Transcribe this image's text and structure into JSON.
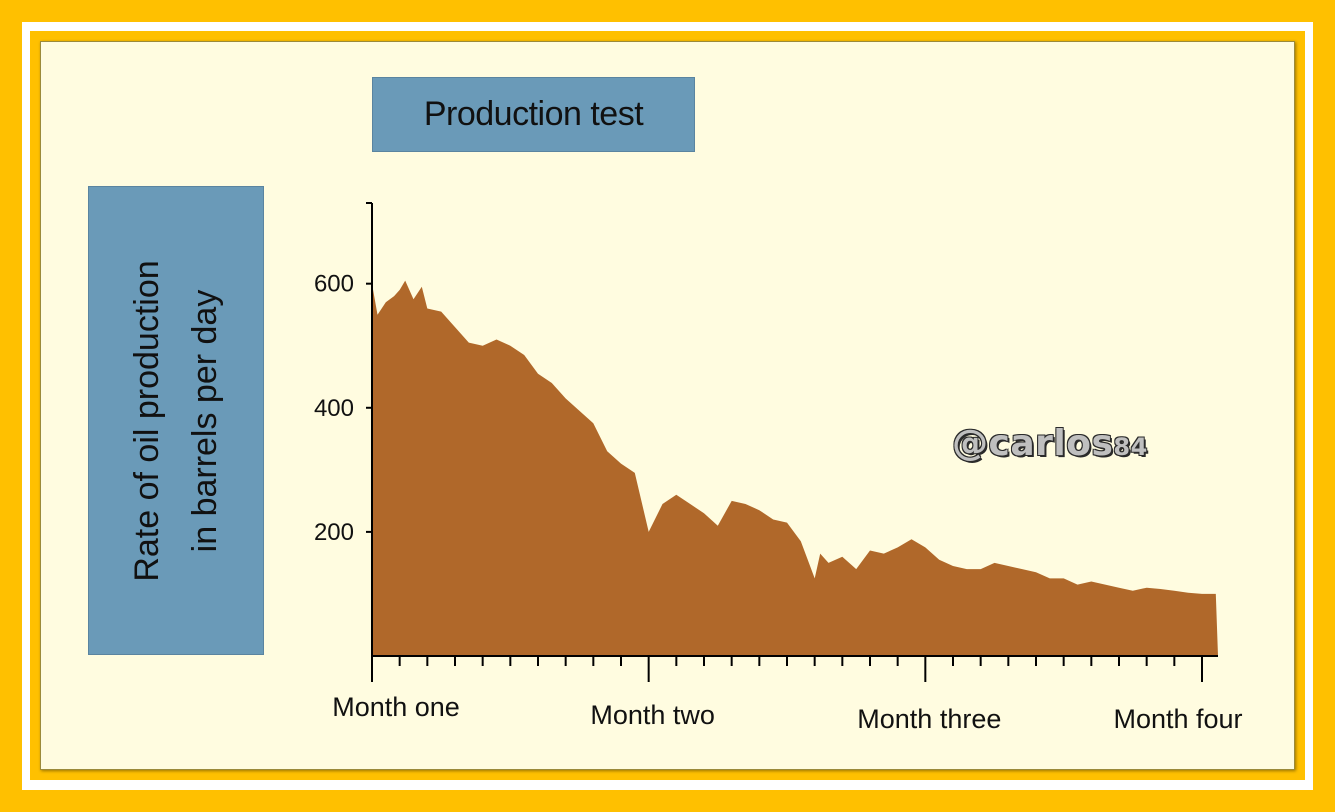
{
  "chart_data": {
    "type": "area",
    "title": "Production test",
    "ylabel": [
      "Rate of oil production",
      "in barrels per day"
    ],
    "xlabel": "",
    "x_categories": [
      "Month one",
      "Month two",
      "Month three",
      "Month four"
    ],
    "y_ticks": [
      600,
      400,
      200
    ],
    "ylim": [
      0,
      730
    ],
    "grid": false,
    "series": [
      {
        "color": "#b0682a",
        "x": [
          0,
          0.02,
          0.05,
          0.08,
          0.1,
          0.12,
          0.15,
          0.18,
          0.2,
          0.25,
          0.3,
          0.35,
          0.4,
          0.45,
          0.5,
          0.55,
          0.6,
          0.65,
          0.7,
          0.75,
          0.8,
          0.85,
          0.9,
          0.95,
          1.0,
          1.05,
          1.1,
          1.15,
          1.2,
          1.25,
          1.3,
          1.35,
          1.4,
          1.45,
          1.5,
          1.55,
          1.6,
          1.62,
          1.65,
          1.7,
          1.75,
          1.8,
          1.85,
          1.9,
          1.95,
          2.0,
          2.05,
          2.1,
          2.15,
          2.2,
          2.25,
          2.3,
          2.35,
          2.4,
          2.45,
          2.5,
          2.55,
          2.6,
          2.65,
          2.7,
          2.75,
          2.8,
          2.85,
          2.9,
          2.95,
          3.0,
          3.05
        ],
        "values": [
          600,
          550,
          570,
          580,
          590,
          605,
          575,
          595,
          560,
          555,
          530,
          505,
          500,
          510,
          500,
          485,
          455,
          440,
          415,
          395,
          375,
          330,
          310,
          295,
          200,
          245,
          260,
          245,
          230,
          210,
          250,
          245,
          235,
          220,
          215,
          185,
          125,
          165,
          150,
          160,
          140,
          170,
          165,
          175,
          188,
          175,
          155,
          145,
          140,
          140,
          150,
          145,
          140,
          135,
          125,
          125,
          115,
          120,
          115,
          110,
          105,
          110,
          108,
          105,
          102,
          100,
          100
        ]
      }
    ]
  },
  "watermark": {
    "main": "@carlos",
    "suffix": "84"
  }
}
